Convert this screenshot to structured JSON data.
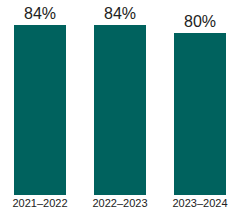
{
  "chart_data": {
    "type": "bar",
    "categories": [
      "2021–2022",
      "2022–2023",
      "2023–2024"
    ],
    "values": [
      84,
      84,
      80
    ],
    "value_labels": [
      "84%",
      "84%",
      "80%"
    ],
    "data_labels": true,
    "color": "#00625e",
    "ylim": [
      0,
      84
    ],
    "grid": false,
    "tick_labels": "x"
  }
}
